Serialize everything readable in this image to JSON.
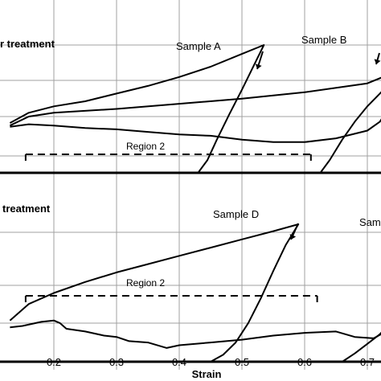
{
  "chart_data": [
    {
      "type": "line",
      "panel": "top",
      "title": "r treatment",
      "xlabel": "Strain",
      "ylabel": "",
      "xlim": [
        0.13,
        0.76
      ],
      "ylim": [
        0,
        1
      ],
      "grid": {
        "x": true,
        "y": true
      },
      "annotation": "Region 2",
      "region": [
        0.155,
        0.61
      ],
      "series": [
        {
          "name": "Sample A",
          "x": [
            0.13,
            0.16,
            0.2,
            0.25,
            0.3,
            0.35,
            0.4,
            0.45,
            0.5,
            0.535,
            0.52,
            0.5,
            0.48,
            0.46,
            0.445,
            0.43
          ],
          "y": [
            0.39,
            0.47,
            0.52,
            0.56,
            0.62,
            0.68,
            0.75,
            0.83,
            0.93,
            1.0,
            0.85,
            0.65,
            0.46,
            0.26,
            0.1,
            0.0
          ]
        },
        {
          "name": "Sample B",
          "x": [
            0.13,
            0.16,
            0.2,
            0.3,
            0.4,
            0.5,
            0.6,
            0.7,
            0.755,
            0.74,
            0.72,
            0.7,
            0.68,
            0.66,
            0.64,
            0.625
          ],
          "y": [
            0.37,
            0.44,
            0.47,
            0.5,
            0.54,
            0.58,
            0.63,
            0.7,
            0.81,
            0.72,
            0.62,
            0.52,
            0.4,
            0.26,
            0.1,
            0.0
          ]
        },
        {
          "name": "",
          "x": [
            0.13,
            0.16,
            0.2,
            0.25,
            0.3,
            0.35,
            0.4,
            0.45,
            0.5,
            0.55,
            0.6,
            0.65,
            0.7,
            0.72,
            0.74,
            0.755
          ],
          "y": [
            0.36,
            0.38,
            0.37,
            0.35,
            0.34,
            0.32,
            0.3,
            0.29,
            0.26,
            0.24,
            0.24,
            0.27,
            0.33,
            0.4,
            0.55,
            0.81
          ]
        }
      ]
    },
    {
      "type": "line",
      "panel": "bottom",
      "title": "treatment",
      "xlabel": "Strain",
      "ylabel": "",
      "xlim": [
        0.13,
        0.76
      ],
      "ylim": [
        0,
        1
      ],
      "grid": {
        "x": true,
        "y": true
      },
      "annotation": "Region 2",
      "region": [
        0.155,
        0.62
      ],
      "series": [
        {
          "name": "Sample D",
          "x": [
            0.13,
            0.16,
            0.2,
            0.25,
            0.3,
            0.35,
            0.4,
            0.45,
            0.5,
            0.55,
            0.59,
            0.57,
            0.55,
            0.53,
            0.51,
            0.49,
            0.47,
            0.45
          ],
          "y": [
            0.3,
            0.42,
            0.5,
            0.58,
            0.65,
            0.71,
            0.77,
            0.83,
            0.89,
            0.95,
            1.0,
            0.85,
            0.66,
            0.46,
            0.28,
            0.14,
            0.05,
            0.0
          ]
        },
        {
          "name": "",
          "x": [
            0.13,
            0.15,
            0.18,
            0.2,
            0.21,
            0.22,
            0.25,
            0.28,
            0.3,
            0.32,
            0.35,
            0.38,
            0.4,
            0.45,
            0.5,
            0.55,
            0.6,
            0.65,
            0.68,
            0.71,
            0.73,
            0.75,
            0.76
          ],
          "y": [
            0.25,
            0.26,
            0.29,
            0.3,
            0.28,
            0.24,
            0.22,
            0.19,
            0.18,
            0.15,
            0.14,
            0.1,
            0.12,
            0.14,
            0.16,
            0.19,
            0.21,
            0.22,
            0.18,
            0.17,
            0.22,
            0.32,
            0.4
          ]
        },
        {
          "name": "",
          "x": [
            0.66,
            0.68,
            0.7,
            0.72,
            0.74,
            0.76
          ],
          "y": [
            0.0,
            0.06,
            0.13,
            0.2,
            0.3,
            0.4
          ]
        }
      ]
    }
  ],
  "figure": {
    "x_ticks": [
      "0.2",
      "0.3",
      "0.4",
      "0.5",
      "0.6",
      "0.7"
    ],
    "x_tick_values": [
      0.2,
      0.3,
      0.4,
      0.5,
      0.6,
      0.7
    ],
    "xlabel": "Strain",
    "panel_titles": [
      "r treatment",
      "treatment"
    ],
    "region_labels": [
      "Region 2",
      "Region 2"
    ],
    "sample_labels": [
      "Sample A",
      "Sample B",
      "Sample D",
      "Sam"
    ],
    "line_color": "#000000",
    "grid_color": "#a0a0a0"
  }
}
